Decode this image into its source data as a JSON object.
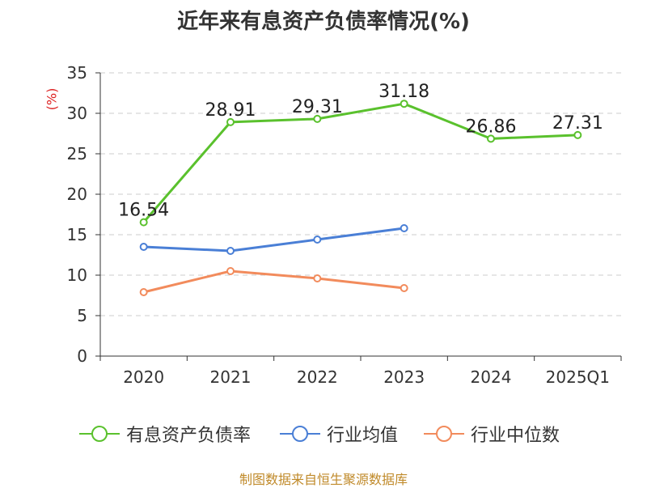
{
  "chart_data": {
    "type": "line",
    "title": "近年来有息资产负债率情况(%)",
    "ylabel": "(%)",
    "xlabel": "",
    "categories": [
      "2020",
      "2021",
      "2022",
      "2023",
      "2024",
      "2025Q1"
    ],
    "ylim": [
      0,
      35
    ],
    "yticks": [
      0,
      5,
      10,
      15,
      20,
      25,
      30,
      35
    ],
    "grid": true,
    "legend_position": "bottom",
    "series": [
      {
        "name": "有息资产负债率",
        "color": "#5ac12d",
        "values": [
          16.54,
          28.91,
          29.31,
          31.18,
          26.86,
          27.31
        ],
        "labels": [
          "16.54",
          "28.91",
          "29.31",
          "31.18",
          "26.86",
          "27.31"
        ],
        "show_labels": true
      },
      {
        "name": "行业均值",
        "color": "#4a7fd6",
        "values": [
          13.5,
          13.0,
          14.4,
          15.8,
          null,
          null
        ],
        "show_labels": false
      },
      {
        "name": "行业中位数",
        "color": "#f28b5c",
        "values": [
          7.9,
          10.5,
          9.6,
          8.4,
          null,
          null
        ],
        "show_labels": false
      }
    ]
  },
  "source": "制图数据来自恒生聚源数据库"
}
